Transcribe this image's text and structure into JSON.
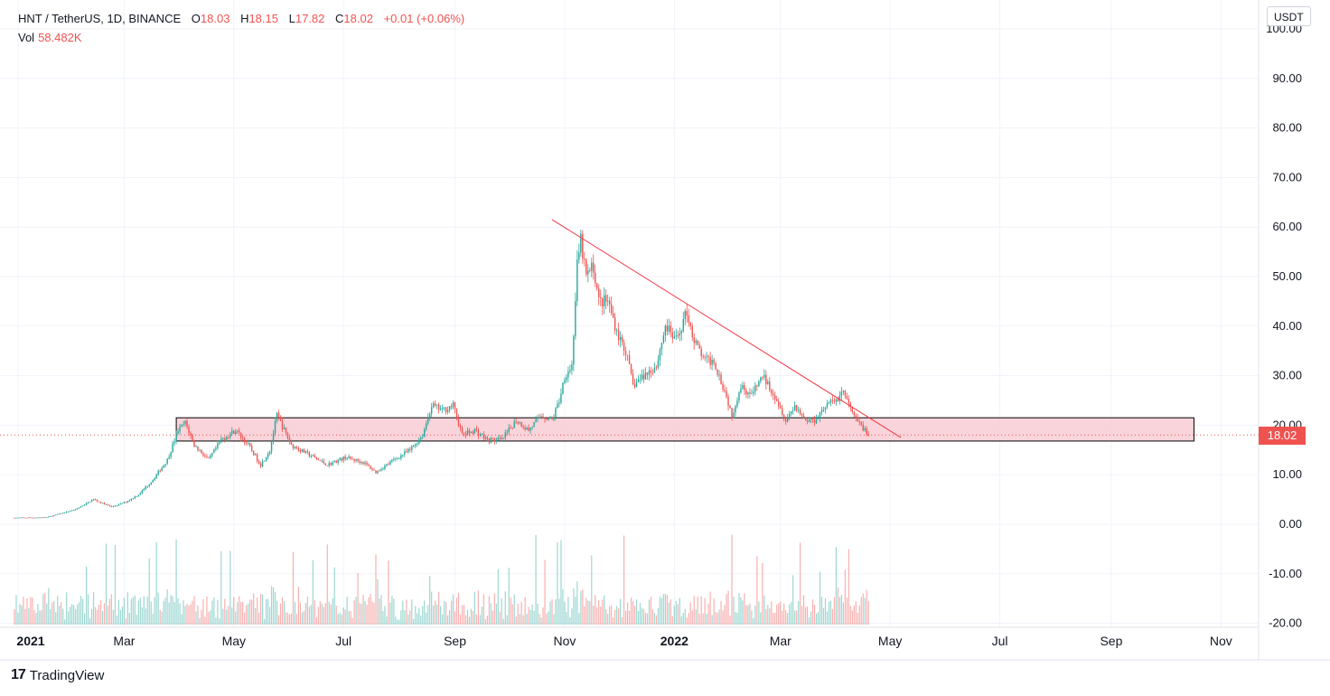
{
  "legend": {
    "symbol": "HNT / TetherUS, 1D, BINANCE",
    "open_label": "O",
    "open": "18.03",
    "high_label": "H",
    "high": "18.15",
    "low_label": "L",
    "low": "17.82",
    "close_label": "C",
    "close": "18.02",
    "change": "+0.01 (+0.06%)",
    "vol_label": "Vol",
    "vol": "58.482K"
  },
  "currency": "USDT",
  "last_price": "18.02",
  "brand": "TradingView",
  "colors": {
    "up": "#26a69a",
    "down": "#ef5350",
    "zone_fill": "#f8cdd4",
    "trendline": "#f23645",
    "grid": "#f0f3fa"
  },
  "chart_data": {
    "type": "candlestick",
    "title": "HNT / TetherUS, 1D, BINANCE",
    "ylim": [
      -20,
      100
    ],
    "y_ticks": [
      "100.00",
      "90.00",
      "80.00",
      "70.00",
      "60.00",
      "50.00",
      "40.00",
      "30.00",
      "20.00",
      "10.00",
      "0.00",
      "-10.00",
      "-20.00"
    ],
    "x_ticks": [
      "2021",
      "Mar",
      "May",
      "Jul",
      "Sep",
      "Nov",
      "2022",
      "Mar",
      "May",
      "Jul",
      "Sep",
      "Nov"
    ],
    "close_path": [
      [
        "2021-01-01",
        1.3
      ],
      [
        "2021-01-20",
        1.4
      ],
      [
        "2021-02-05",
        3.0
      ],
      [
        "2021-02-15",
        5.0
      ],
      [
        "2021-02-25",
        3.5
      ],
      [
        "2021-03-05",
        4.5
      ],
      [
        "2021-03-12",
        6.0
      ],
      [
        "2021-03-20",
        9.0
      ],
      [
        "2021-03-28",
        13.0
      ],
      [
        "2021-04-03",
        19.0
      ],
      [
        "2021-04-07",
        20.5
      ],
      [
        "2021-04-12",
        16.0
      ],
      [
        "2021-04-20",
        13.0
      ],
      [
        "2021-04-27",
        17.0
      ],
      [
        "2021-05-05",
        19.0
      ],
      [
        "2021-05-12",
        16.0
      ],
      [
        "2021-05-19",
        12.0
      ],
      [
        "2021-05-24",
        15.0
      ],
      [
        "2021-05-28",
        22.0
      ],
      [
        "2021-06-05",
        16.0
      ],
      [
        "2021-06-15",
        14.0
      ],
      [
        "2021-06-25",
        12.0
      ],
      [
        "2021-07-05",
        13.5
      ],
      [
        "2021-07-15",
        12.5
      ],
      [
        "2021-07-22",
        10.5
      ],
      [
        "2021-08-01",
        13.0
      ],
      [
        "2021-08-10",
        15.0
      ],
      [
        "2021-08-17",
        18.0
      ],
      [
        "2021-08-22",
        24.0
      ],
      [
        "2021-08-28",
        23.0
      ],
      [
        "2021-09-03",
        24.0
      ],
      [
        "2021-09-08",
        18.0
      ],
      [
        "2021-09-15",
        19.0
      ],
      [
        "2021-09-22",
        17.0
      ],
      [
        "2021-09-30",
        17.0
      ],
      [
        "2021-10-08",
        21.0
      ],
      [
        "2021-10-15",
        19.0
      ],
      [
        "2021-10-22",
        22.0
      ],
      [
        "2021-10-28",
        21.0
      ],
      [
        "2021-11-01",
        25.0
      ],
      [
        "2021-11-04",
        30.0
      ],
      [
        "2021-11-08",
        32.0
      ],
      [
        "2021-11-11",
        52.0
      ],
      [
        "2021-11-13",
        57.0
      ],
      [
        "2021-11-16",
        50.0
      ],
      [
        "2021-11-20",
        52.0
      ],
      [
        "2021-11-23",
        45.0
      ],
      [
        "2021-11-28",
        45.0
      ],
      [
        "2021-12-04",
        38.0
      ],
      [
        "2021-12-08",
        35.0
      ],
      [
        "2021-12-12",
        28.0
      ],
      [
        "2021-12-18",
        30.0
      ],
      [
        "2021-12-25",
        32.0
      ],
      [
        "2021-12-30",
        40.0
      ],
      [
        "2022-01-05",
        37.0
      ],
      [
        "2022-01-11",
        43.0
      ],
      [
        "2022-01-15",
        37.0
      ],
      [
        "2022-01-21",
        33.0
      ],
      [
        "2022-01-26",
        33.0
      ],
      [
        "2022-02-01",
        27.0
      ],
      [
        "2022-02-05",
        22.0
      ],
      [
        "2022-02-10",
        28.0
      ],
      [
        "2022-02-16",
        26.0
      ],
      [
        "2022-02-22",
        30.0
      ],
      [
        "2022-03-01",
        26.0
      ],
      [
        "2022-03-07",
        21.0
      ],
      [
        "2022-03-12",
        24.0
      ],
      [
        "2022-03-18",
        21.0
      ],
      [
        "2022-03-23",
        21.0
      ],
      [
        "2022-03-29",
        24.0
      ],
      [
        "2022-04-04",
        25.0
      ],
      [
        "2022-04-08",
        27.0
      ],
      [
        "2022-04-11",
        24.0
      ],
      [
        "2022-04-15",
        21.0
      ],
      [
        "2022-04-19",
        19.5
      ],
      [
        "2022-04-22",
        18.02
      ]
    ],
    "last_close": 18.02,
    "annotations": {
      "support_zone": {
        "start": "2021-04-02",
        "end": "2022-10-20",
        "low": 16.8,
        "high": 21.5
      },
      "trendline": {
        "start": [
          "2021-10-28",
          61.5
        ],
        "end": [
          "2022-05-10",
          17.5
        ]
      }
    },
    "volume": {
      "last": "58.482K"
    }
  }
}
